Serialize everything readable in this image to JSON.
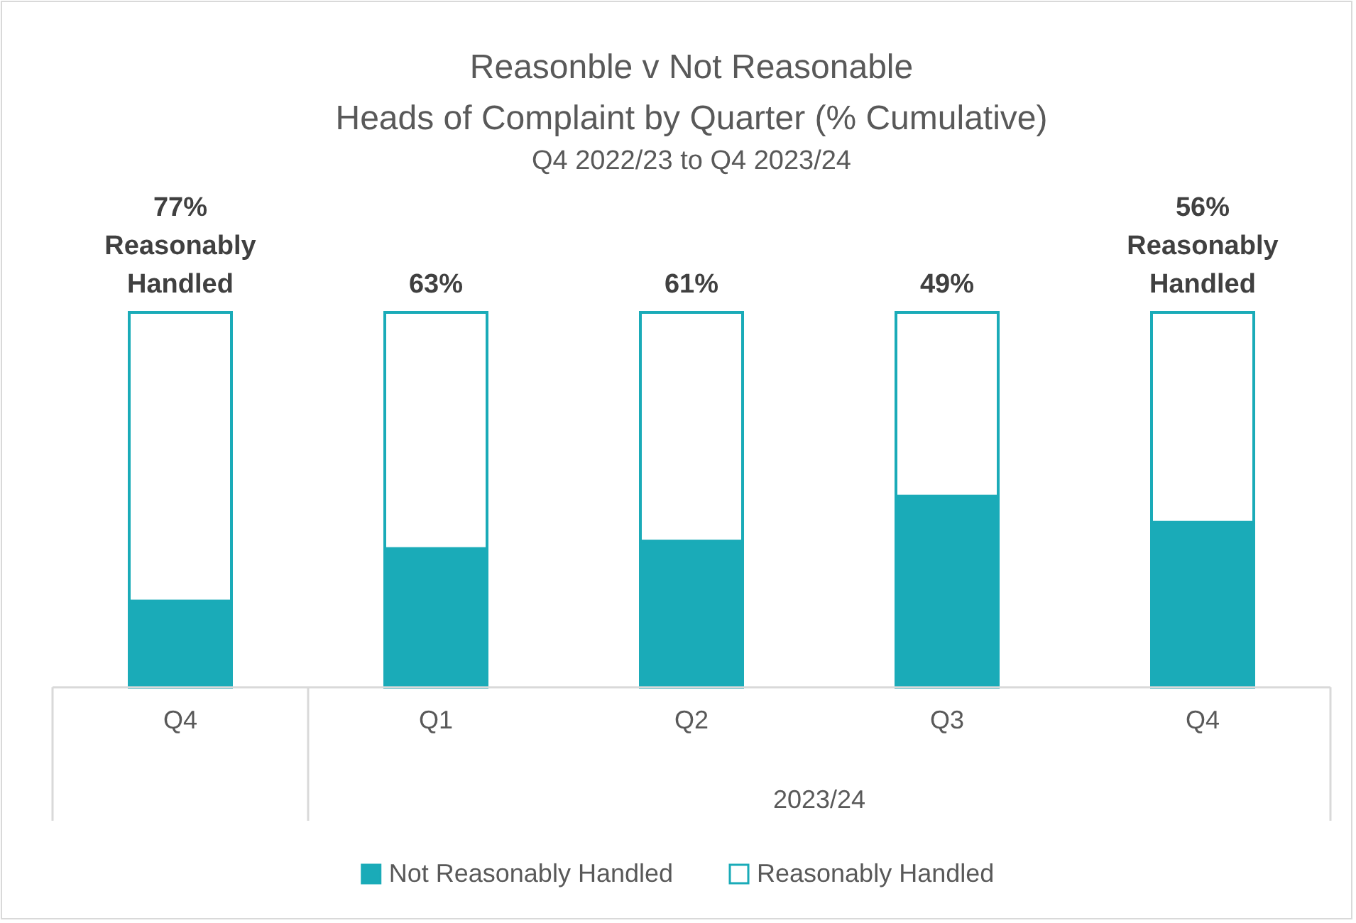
{
  "chart_data": {
    "type": "bar",
    "title": "Reasonble v Not Reasonable\nHeads of Complaint by Quarter (% Cumulative)",
    "subtitle": "Q4 2022/23 to Q4 2023/24",
    "categories": [
      "Q4",
      "Q1",
      "Q2",
      "Q3",
      "Q4"
    ],
    "stacked": true,
    "legend": "bottom",
    "annotations": [
      "2023/24"
    ],
    "series": [
      {
        "name": "Not Reasonably Handled",
        "color": "#1aabb8",
        "values": [
          23,
          37,
          39,
          51,
          44
        ]
      },
      {
        "name": "Reasonably Handled",
        "color": "#ffffff",
        "values": [
          77,
          63,
          61,
          49,
          56
        ],
        "value_labels": [
          "77%\nReasonably\nHandled",
          "63%",
          "61%",
          "49%",
          "56%\nReasonably\nHandled"
        ]
      }
    ]
  }
}
